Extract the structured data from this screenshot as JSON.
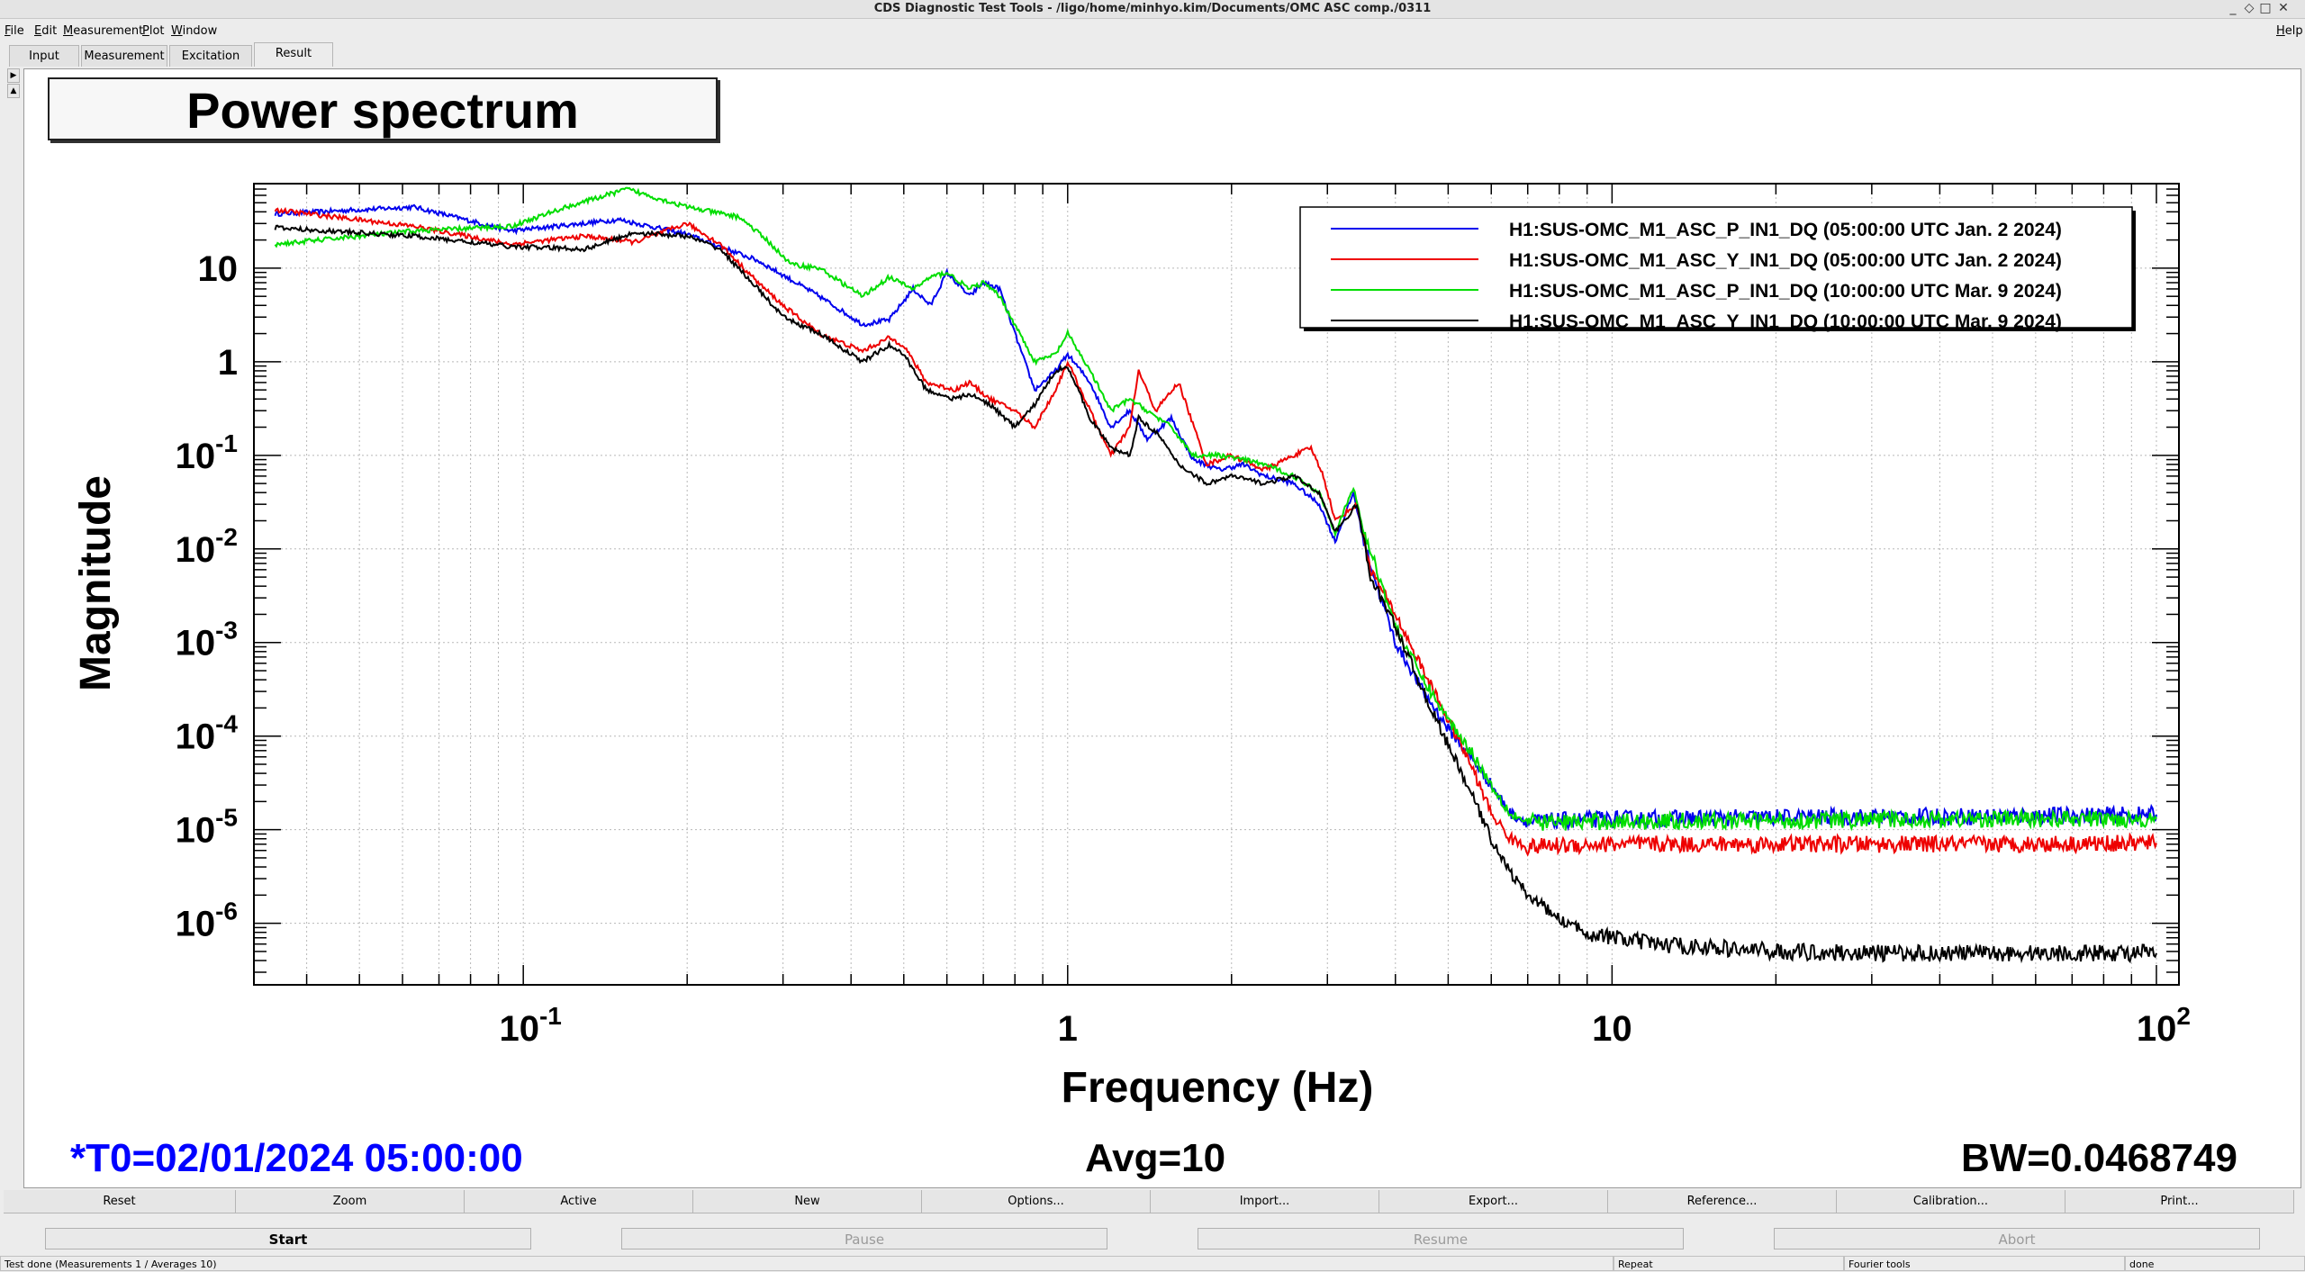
{
  "window": {
    "title": "CDS Diagnostic Test Tools - /ligo/home/minhyo.kim/Documents/OMC ASC comp./0311",
    "controls": [
      "minimize-icon",
      "maximize-icon",
      "close-icon"
    ]
  },
  "menu": {
    "file": "File",
    "edit": "Edit",
    "measurement": "Measurement",
    "plot": "Plot",
    "window": "Window",
    "help": "Help"
  },
  "tabs": {
    "input": "Input",
    "measurement": "Measurement",
    "excitation": "Excitation",
    "result": "Result",
    "active": "Result"
  },
  "plot": {
    "title": "Power spectrum",
    "t0": "*T0=02/01/2024 05:00:00",
    "avg": "Avg=10",
    "bw": "BW=0.0468749"
  },
  "chart_data": {
    "type": "line",
    "title": "Power spectrum",
    "xlabel": "Frequency (Hz)",
    "ylabel": "Magnitude",
    "xscale": "log",
    "yscale": "log",
    "xlim": [
      0.032,
      110
    ],
    "ylim": [
      2.2e-07,
      80
    ],
    "grid": true,
    "legend_position": "top-right",
    "x_tick_labels": [
      "10^-1",
      "1",
      "10",
      "10^2"
    ],
    "y_tick_labels": [
      "10^-6",
      "10^-5",
      "10^-4",
      "10^-3",
      "10^-2",
      "10^-1",
      "1",
      "10"
    ],
    "series": [
      {
        "name": "H1:SUS-OMC_M1_ASC_P_IN1_DQ (05:00:00 UTC Jan. 2 2024)",
        "color": "#0000ee",
        "x": [
          0.035,
          0.063,
          0.095,
          0.15,
          0.2,
          0.27,
          0.35,
          0.42,
          0.47,
          0.52,
          0.56,
          0.6,
          0.66,
          0.7,
          0.75,
          0.8,
          0.87,
          0.95,
          1.0,
          1.1,
          1.2,
          1.3,
          1.4,
          1.55,
          1.7,
          1.9,
          2.1,
          2.3,
          2.6,
          2.9,
          3.1,
          3.35,
          3.5,
          3.7,
          4.0,
          4.5,
          5.0,
          5.5,
          6.0,
          6.5,
          7.0,
          8.0,
          10,
          20,
          50,
          100
        ],
        "y": [
          38,
          45,
          25,
          33,
          23,
          12,
          5,
          2.5,
          2.8,
          6,
          4,
          9,
          5,
          7,
          6,
          2,
          0.5,
          0.8,
          1.2,
          0.6,
          0.2,
          0.3,
          0.15,
          0.25,
          0.09,
          0.07,
          0.08,
          0.06,
          0.05,
          0.03,
          0.012,
          0.04,
          0.012,
          0.004,
          0.001,
          0.0003,
          0.00012,
          6e-05,
          3e-05,
          1.5e-05,
          1.2e-05,
          1.25e-05,
          1.3e-05,
          1.35e-05,
          1.4e-05,
          1.45e-05
        ],
        "noise_floor": {
          "from": 7.0,
          "level": 1.35e-05
        }
      },
      {
        "name": "H1:SUS-OMC_M1_ASC_Y_IN1_DQ (05:00:00 UTC Jan. 2 2024)",
        "color": "#ee0000",
        "x": [
          0.035,
          0.063,
          0.095,
          0.13,
          0.16,
          0.2,
          0.23,
          0.27,
          0.3,
          0.35,
          0.42,
          0.47,
          0.5,
          0.55,
          0.62,
          0.66,
          0.72,
          0.8,
          0.87,
          0.95,
          1.0,
          1.1,
          1.2,
          1.3,
          1.35,
          1.45,
          1.6,
          1.8,
          2.0,
          2.3,
          2.6,
          2.8,
          2.95,
          3.1,
          3.4,
          3.6,
          4.0,
          4.5,
          5.0,
          5.5,
          6.0,
          6.5,
          7.0,
          8.0,
          10,
          20,
          50,
          100
        ],
        "y": [
          42,
          28,
          18,
          22,
          19,
          30,
          18,
          7,
          4,
          2,
          1.3,
          1.8,
          1.5,
          0.6,
          0.5,
          0.6,
          0.4,
          0.3,
          0.2,
          0.5,
          1.0,
          0.3,
          0.1,
          0.2,
          0.8,
          0.3,
          0.6,
          0.08,
          0.1,
          0.07,
          0.1,
          0.12,
          0.06,
          0.02,
          0.03,
          0.006,
          0.002,
          0.0005,
          0.00015,
          5e-05,
          1.5e-05,
          8e-06,
          6.5e-06,
          6.8e-06,
          7e-06,
          7e-06,
          7e-06,
          7.2e-06
        ],
        "noise_floor": {
          "from": 7.0,
          "level": 7e-06
        }
      },
      {
        "name": "H1:SUS-OMC_M1_ASC_P_IN1_DQ (10:00:00 UTC Mar. 9 2024)",
        "color": "#00dd00",
        "x": [
          0.035,
          0.063,
          0.095,
          0.12,
          0.155,
          0.2,
          0.25,
          0.28,
          0.31,
          0.35,
          0.42,
          0.47,
          0.52,
          0.56,
          0.6,
          0.66,
          0.7,
          0.75,
          0.8,
          0.87,
          0.95,
          1.0,
          1.1,
          1.2,
          1.3,
          1.4,
          1.55,
          1.7,
          1.9,
          2.1,
          2.3,
          2.6,
          2.9,
          3.1,
          3.35,
          3.5,
          3.7,
          4.0,
          4.5,
          5.0,
          5.5,
          6.0,
          6.5,
          7.0,
          8.0,
          10,
          20,
          50,
          100
        ],
        "y": [
          18,
          25,
          28,
          45,
          70,
          45,
          35,
          20,
          11,
          10,
          5,
          8,
          6,
          8,
          9,
          6,
          7,
          5,
          2.5,
          1.0,
          1.2,
          2.0,
          0.8,
          0.3,
          0.4,
          0.3,
          0.2,
          0.1,
          0.1,
          0.09,
          0.08,
          0.06,
          0.04,
          0.015,
          0.045,
          0.015,
          0.006,
          0.0015,
          0.0004,
          0.00015,
          7e-05,
          3e-05,
          1.5e-05,
          1.2e-05,
          1.2e-05,
          1.22e-05,
          1.25e-05,
          1.3e-05,
          1.3e-05
        ],
        "noise_floor": {
          "from": 7.0,
          "level": 1.25e-05
        }
      },
      {
        "name": "H1:SUS-OMC_M1_ASC_Y_IN1_DQ (10:00:00 UTC Mar. 9 2024)",
        "color": "#000000",
        "x": [
          0.035,
          0.063,
          0.095,
          0.13,
          0.16,
          0.2,
          0.23,
          0.27,
          0.3,
          0.35,
          0.42,
          0.47,
          0.5,
          0.55,
          0.62,
          0.66,
          0.72,
          0.8,
          0.87,
          0.95,
          1.0,
          1.1,
          1.2,
          1.3,
          1.35,
          1.45,
          1.6,
          1.8,
          2.0,
          2.3,
          2.6,
          2.9,
          3.1,
          3.4,
          3.6,
          4.0,
          4.5,
          5.0,
          5.5,
          6.0,
          6.5,
          7.0,
          7.5,
          8.0,
          9.0,
          10,
          12,
          15,
          20,
          30,
          50,
          100
        ],
        "y": [
          27,
          22,
          17,
          16,
          24,
          22,
          16,
          6,
          3,
          2,
          1.0,
          1.5,
          1.2,
          0.5,
          0.4,
          0.45,
          0.35,
          0.2,
          0.35,
          0.8,
          0.9,
          0.25,
          0.12,
          0.1,
          0.25,
          0.18,
          0.08,
          0.05,
          0.06,
          0.05,
          0.06,
          0.04,
          0.015,
          0.03,
          0.005,
          0.0015,
          0.0003,
          8e-05,
          2.5e-05,
          8e-06,
          3.5e-06,
          2e-06,
          1.5e-06,
          1.1e-06,
          8e-07,
          7e-07,
          6e-07,
          5.5e-07,
          5e-07,
          4.8e-07,
          4.8e-07,
          4.8e-07
        ],
        "noise_floor": {
          "from": 9.0,
          "level": 5.2e-07
        }
      }
    ]
  },
  "buttons": {
    "reset": "Reset",
    "zoom": "Zoom",
    "active": "Active",
    "new": "New",
    "options": "Options...",
    "import": "Import...",
    "export": "Export...",
    "reference": "Reference...",
    "calibration": "Calibration...",
    "print": "Print..."
  },
  "controls": {
    "start": "Start",
    "pause": "Pause",
    "resume": "Resume",
    "abort": "Abort"
  },
  "status": {
    "message": "Test done (Measurements 1 / Averages 10)",
    "repeat": "Repeat",
    "tools": "Fourier tools",
    "state": "done"
  },
  "colors": {
    "blue": "#0000ee",
    "red": "#ee0000",
    "green": "#00dd00",
    "black": "#000000",
    "info_blue": "#0000ff"
  }
}
